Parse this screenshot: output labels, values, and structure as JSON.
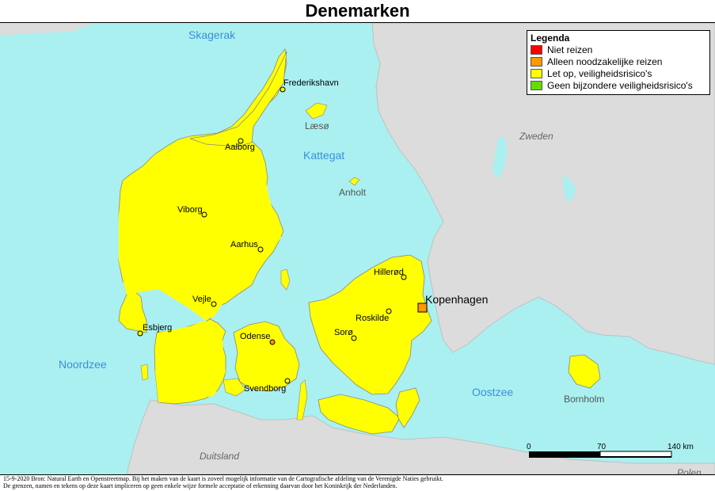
{
  "title": "Denemarken",
  "colors": {
    "sea": "#aaf0f0",
    "land_other": "#dcdcdc",
    "denmark": "#ffff00",
    "red": "#ff0000",
    "orange": "#ff9900",
    "yellow": "#ffff00",
    "green": "#66dd00"
  },
  "legend": {
    "title": "Legenda",
    "items": [
      {
        "label": "Niet reizen",
        "color": "#ff0000"
      },
      {
        "label": "Alleen noodzakelijke reizen",
        "color": "#ff9900"
      },
      {
        "label": "Let op, veiligheidsrisico's",
        "color": "#ffff00"
      },
      {
        "label": "Geen bijzondere veiligheidsrisico's",
        "color": "#66dd00"
      }
    ]
  },
  "seas": {
    "skagerak": "Skagerak",
    "kattegat": "Kattegat",
    "noordzee": "Noordzee",
    "oostzee": "Oostzee"
  },
  "countries": {
    "zweden": "Zweden",
    "duitsland": "Duitsland",
    "polen": "Polen"
  },
  "islands": {
    "laeso": "Læsø",
    "anholt": "Anholt",
    "bornholm": "Bornholm"
  },
  "cities": {
    "frederikshavn": "Frederikshavn",
    "aalborg": "Aalborg",
    "viborg": "Viborg",
    "aarhus": "Aarhus",
    "vejle": "Vejle",
    "esbjerg": "Esbjerg",
    "odense": "Odense",
    "svendborg": "Svendborg",
    "hillerod": "Hillerød",
    "roskilde": "Roskilde",
    "soro": "Sorø"
  },
  "capital": "Kopenhagen",
  "scale": {
    "ticks": [
      "0",
      "70",
      "140 km"
    ]
  },
  "footer": {
    "line1": "15-9-2020 Bron: Natural Earth en Openstreetmap. Bij het maken van de kaart is zoveel mogelijk informatie van de Cartografische afdeling van de Verenigde Naties gebruikt.",
    "line2": "De grenzen, namen en tekens op deze kaart impliceren op geen enkele wijze formele acceptatie of erkenning daarvan door het Koninkrijk der Nederlanden."
  }
}
